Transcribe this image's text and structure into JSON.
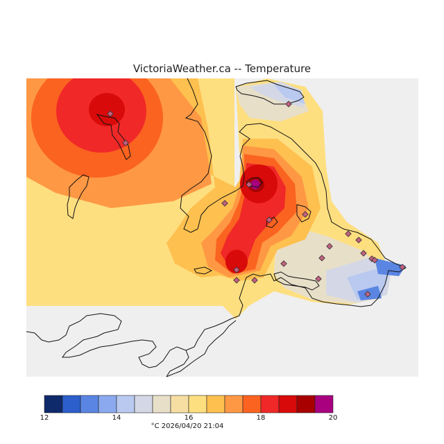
{
  "title": "VictoriaWeather.ca -- Temperature",
  "footer": "°C  2026/04/20 21:04",
  "colors": {
    "background": "#ffffff",
    "ocean": "#efefef",
    "coast": "#111111",
    "station": "#c06080"
  },
  "legend": {
    "unit": "°C",
    "min": 12,
    "max": 20,
    "tick_labels": [
      "12",
      "14",
      "16",
      "18",
      "20"
    ],
    "bins": [
      {
        "from": 12.0,
        "to": 12.5,
        "color": "#0e2a6b"
      },
      {
        "from": 12.5,
        "to": 13.0,
        "color": "#2c5fcc"
      },
      {
        "from": 13.0,
        "to": 13.5,
        "color": "#5a85e3"
      },
      {
        "from": 13.5,
        "to": 14.0,
        "color": "#8aa9ee"
      },
      {
        "from": 14.0,
        "to": 14.5,
        "color": "#b9c9f0"
      },
      {
        "from": 14.5,
        "to": 15.0,
        "color": "#d4d8e6"
      },
      {
        "from": 15.0,
        "to": 15.5,
        "color": "#e8dfc9"
      },
      {
        "from": 15.5,
        "to": 16.0,
        "color": "#f6dea2"
      },
      {
        "from": 16.0,
        "to": 16.5,
        "color": "#fedf80"
      },
      {
        "from": 16.5,
        "to": 17.0,
        "color": "#fec04f"
      },
      {
        "from": 17.0,
        "to": 17.5,
        "color": "#fe9844"
      },
      {
        "from": 17.5,
        "to": 18.0,
        "color": "#fb6320"
      },
      {
        "from": 18.0,
        "to": 18.5,
        "color": "#f02828"
      },
      {
        "from": 18.5,
        "to": 19.0,
        "color": "#d80a0a"
      },
      {
        "from": 19.0,
        "to": 19.5,
        "color": "#a80000"
      },
      {
        "from": 19.5,
        "to": 20.0,
        "color": "#a8007f"
      }
    ]
  }
}
